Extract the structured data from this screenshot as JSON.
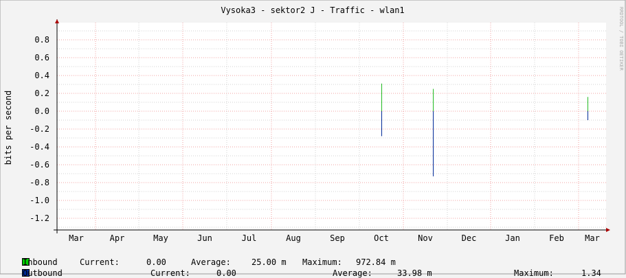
{
  "chart_data": {
    "type": "line",
    "title": "Vysoka3 - sektor2 J - Traffic - wlan1",
    "ylabel": "bits per second",
    "watermark": "RRDTOOL / TOBI OETIKER",
    "ylim": [
      -1.35,
      0.98
    ],
    "yticks": [
      0.8,
      0.6,
      0.4,
      0.2,
      0.0,
      -0.2,
      -0.4,
      -0.6,
      -0.8,
      -1.0,
      -1.2
    ],
    "ytick_labels": [
      "0.8",
      "0.6",
      "0.4",
      "0.2",
      "0.0",
      "-0.2",
      "-0.4",
      "-0.6",
      "-0.8",
      "-1.0",
      "-1.2"
    ],
    "xtick_labels": [
      "Mar",
      "Apr",
      "May",
      "Jun",
      "Jul",
      "Aug",
      "Sep",
      "Oct",
      "Nov",
      "Dec",
      "Jan",
      "Feb",
      "Mar"
    ],
    "grid": true,
    "series": [
      {
        "name": "Inbound",
        "color": "#22bb22",
        "points": [
          {
            "x": "Oct 16",
            "y": 0.31
          },
          {
            "x": "Nov 21",
            "y": 0.25
          },
          {
            "x": "Mar 7",
            "y": 0.16
          }
        ]
      },
      {
        "name": "Outbound",
        "color": "#002a97",
        "points": [
          {
            "x": "Oct 16",
            "y": -0.28
          },
          {
            "x": "Nov 21",
            "y": -0.73
          },
          {
            "x": "Mar 7",
            "y": -0.1
          }
        ]
      }
    ]
  },
  "legend": [
    {
      "name": "Inbound",
      "color": "#00cc00",
      "current_label": "Current:",
      "current": "0.00",
      "average_label": "Average:",
      "average": "25.00 m",
      "maximum_label": "Maximum:",
      "maximum": "972.84 m"
    },
    {
      "name": "Outbound",
      "color": "#002a97",
      "current_label": "Current:",
      "current": "0.00",
      "average_label": "Average:",
      "average": "33.98 m",
      "maximum_label": "Maximum:",
      "maximum": "1.34"
    }
  ]
}
